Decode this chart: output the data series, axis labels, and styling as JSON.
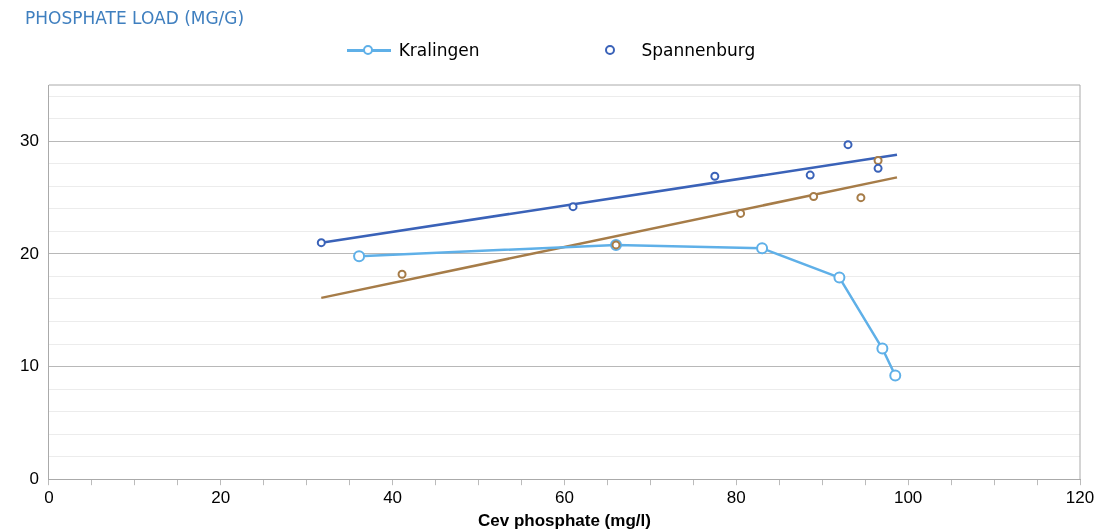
{
  "chart_data": {
    "type": "scatter",
    "annotations": [
      "PHOSPHATE LOAD (MG/G)"
    ],
    "xlabel": "Cev phosphate (mg/l)",
    "xlim": [
      0,
      120
    ],
    "xticks": [
      0,
      {
        "value": 5,
        "label": null
      },
      {
        "value": 10,
        "label": null
      },
      {
        "value": 15,
        "label": null
      },
      20,
      {
        "value": 25,
        "label": null
      },
      {
        "value": 30,
        "label": null
      },
      {
        "value": 35,
        "label": null
      },
      40,
      {
        "value": 45,
        "label": null
      },
      {
        "value": 50,
        "label": null
      },
      {
        "value": 55,
        "label": null
      },
      60,
      {
        "value": 65,
        "label": null
      },
      {
        "value": 70,
        "label": null
      },
      {
        "value": 75,
        "label": null
      },
      80,
      {
        "value": 85,
        "label": null
      },
      {
        "value": 90,
        "label": null
      },
      {
        "value": 95,
        "label": null
      },
      100,
      {
        "value": 105,
        "label": null
      },
      {
        "value": 110,
        "label": null
      },
      {
        "value": 115,
        "label": null
      },
      120
    ],
    "ylim": [
      0,
      35
    ],
    "yticks": [
      0,
      {
        "value": 2,
        "label": null
      },
      {
        "value": 4,
        "label": null
      },
      {
        "value": 6,
        "label": null
      },
      {
        "value": 8,
        "label": null
      },
      10,
      {
        "value": 12,
        "label": null
      },
      {
        "value": 14,
        "label": null
      },
      {
        "value": 16,
        "label": null
      },
      {
        "value": 18,
        "label": null
      },
      20,
      {
        "value": 22,
        "label": null
      },
      {
        "value": 24,
        "label": null
      },
      {
        "value": 26,
        "label": null
      },
      {
        "value": 28,
        "label": null
      },
      30,
      {
        "value": 32,
        "label": null
      },
      {
        "value": 34,
        "label": null
      }
    ],
    "grid": "y",
    "legend": "top",
    "marker": "circle",
    "series": [
      {
        "name": "Kralingen",
        "type": "line",
        "color": "#5fb0e8",
        "x": [
          36.1,
          66.0,
          83.0,
          92.0,
          97.0,
          98.5
        ],
        "values": [
          19.8,
          20.8,
          20.5,
          17.9,
          11.6,
          9.2
        ]
      },
      {
        "name": "Spannenburg",
        "type": "scatter",
        "color": "#3a62b8",
        "x": [
          31.7,
          61.0,
          77.5,
          88.6,
          93.0,
          96.5
        ],
        "values": [
          21.0,
          24.2,
          26.9,
          27.0,
          29.7,
          27.6
        ]
      },
      {
        "type": "scatter",
        "color": "#a67c48",
        "x": [
          41.1,
          66.0,
          80.5,
          89.0,
          94.5,
          96.5
        ],
        "values": [
          18.2,
          20.8,
          23.6,
          25.1,
          25.0,
          28.3
        ]
      },
      {
        "type": "line",
        "marker": "none",
        "color": "#3a62b8",
        "x": [
          31.7,
          98.7
        ],
        "values": [
          21.0,
          28.8
        ]
      },
      {
        "type": "line",
        "marker": "none",
        "color": "#a67c48",
        "x": [
          31.7,
          98.7
        ],
        "values": [
          16.1,
          26.8
        ]
      }
    ]
  }
}
